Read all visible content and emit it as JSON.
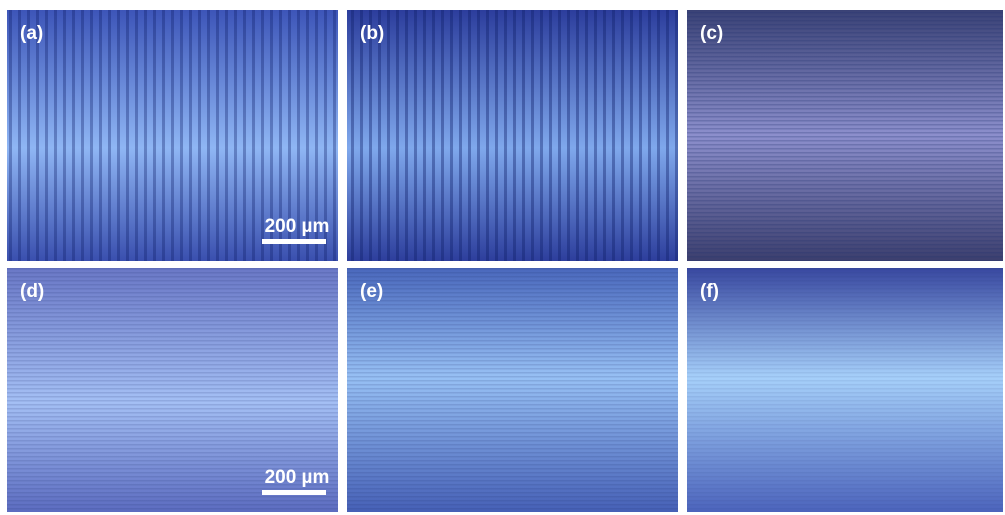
{
  "panels": [
    {
      "label": "(a)",
      "scale_bar": "200 µm"
    },
    {
      "label": "(b)"
    },
    {
      "label": "(c)"
    },
    {
      "label": "(d)",
      "scale_bar": "200 µm"
    },
    {
      "label": "(e)"
    },
    {
      "label": "(f)"
    }
  ]
}
